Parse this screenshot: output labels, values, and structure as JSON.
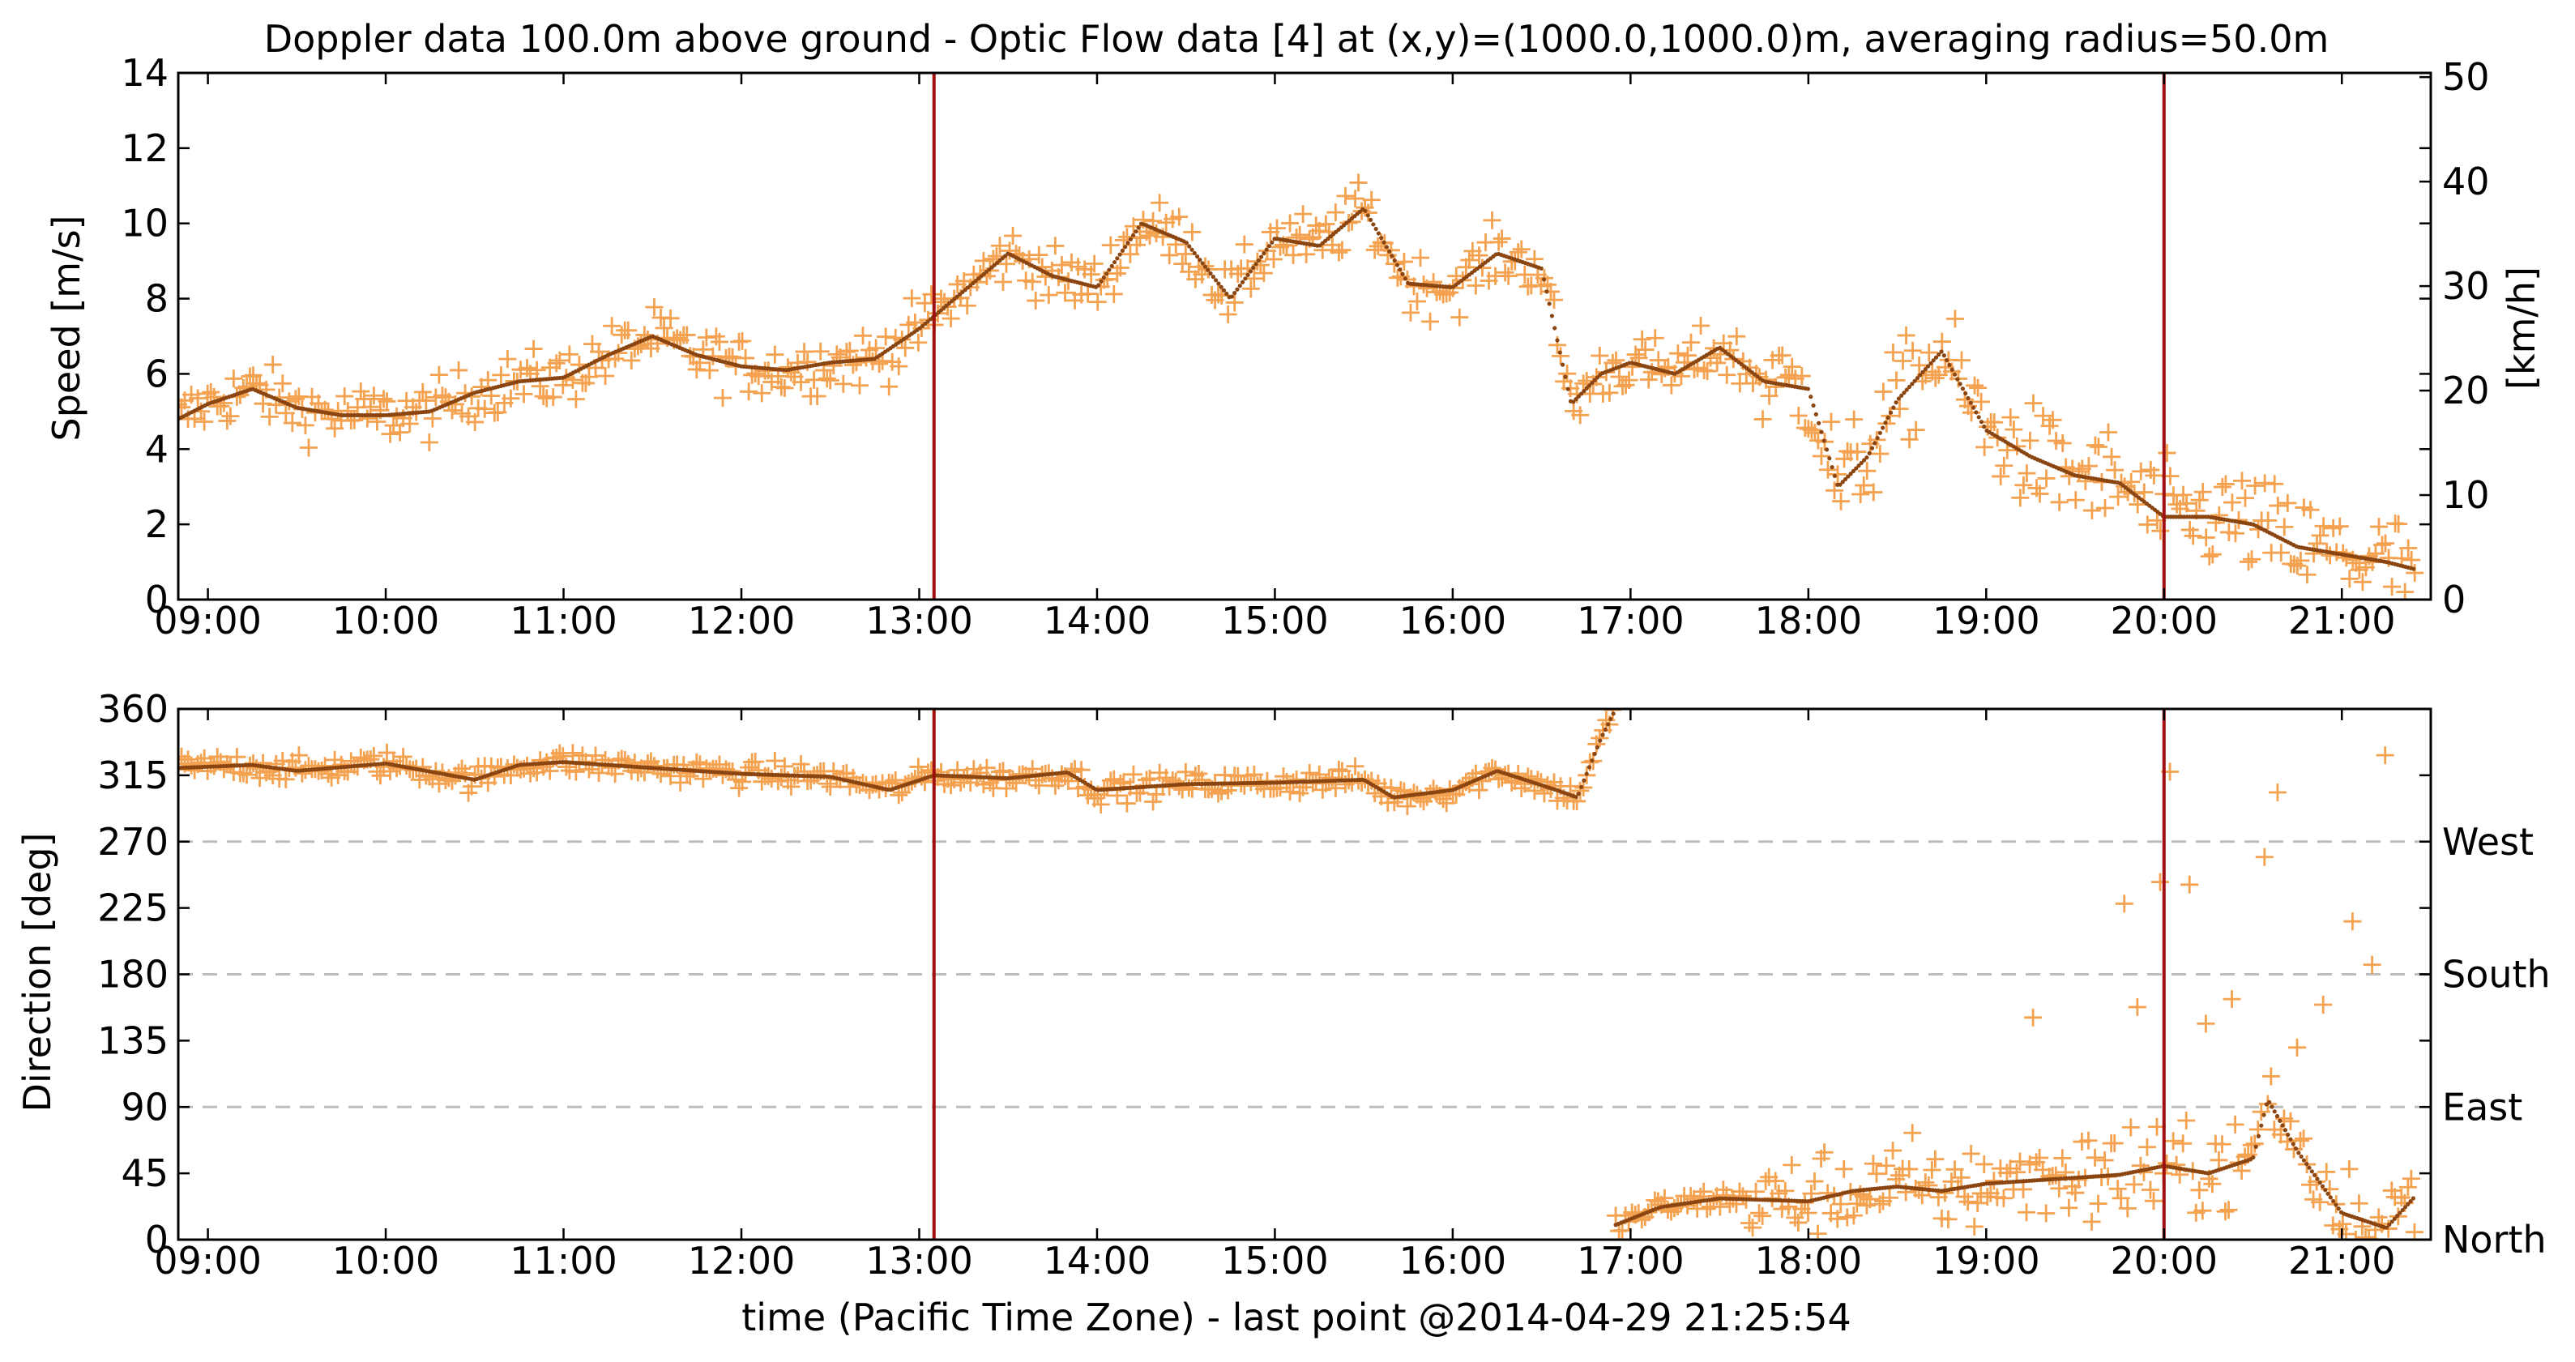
{
  "title": "Doppler data 100.0m above ground - Optic Flow data [4] at (x,y)=(1000.0,1000.0)m, averaging radius=50.0m",
  "xlabel": "time (Pacific Time Zone) - last point @2014-04-29 21:25:54",
  "x_ticks": [
    "09:00",
    "10:00",
    "11:00",
    "12:00",
    "13:00",
    "14:00",
    "15:00",
    "16:00",
    "17:00",
    "18:00",
    "19:00",
    "20:00",
    "21:00"
  ],
  "colors": {
    "scatter": "#f4a250",
    "line": "#8b4510",
    "vline": "#a01010",
    "grid": "#bdbdbd"
  },
  "chart_data": [
    {
      "type": "scatter",
      "name": "speed",
      "ylabel": "Speed [m/s]",
      "ylabel_right": "[km/h]",
      "ylim": [
        0,
        14
      ],
      "y_ticks": [
        "0",
        "2",
        "4",
        "6",
        "8",
        "10",
        "12",
        "14"
      ],
      "y2lim": [
        0,
        50.4
      ],
      "y2_ticks": [
        "0",
        "10",
        "20",
        "30",
        "40",
        "50"
      ],
      "xlim": [
        "08:50",
        "21:30"
      ],
      "vertical_lines": [
        "13:05",
        "20:00"
      ],
      "line_series": [
        {
          "x": "08:50",
          "y": 4.8
        },
        {
          "x": "09:00",
          "y": 5.2
        },
        {
          "x": "09:15",
          "y": 5.6
        },
        {
          "x": "09:30",
          "y": 5.1
        },
        {
          "x": "09:45",
          "y": 4.9
        },
        {
          "x": "10:00",
          "y": 4.9
        },
        {
          "x": "10:15",
          "y": 5.0
        },
        {
          "x": "10:30",
          "y": 5.5
        },
        {
          "x": "10:45",
          "y": 5.8
        },
        {
          "x": "11:00",
          "y": 5.9
        },
        {
          "x": "11:15",
          "y": 6.5
        },
        {
          "x": "11:30",
          "y": 7.0
        },
        {
          "x": "11:45",
          "y": 6.5
        },
        {
          "x": "12:00",
          "y": 6.2
        },
        {
          "x": "12:15",
          "y": 6.1
        },
        {
          "x": "12:30",
          "y": 6.3
        },
        {
          "x": "12:45",
          "y": 6.4
        },
        {
          "x": "13:00",
          "y": 7.2
        },
        {
          "x": "13:15",
          "y": 8.2
        },
        {
          "x": "13:30",
          "y": 9.2
        },
        {
          "x": "13:45",
          "y": 8.6
        },
        {
          "x": "14:00",
          "y": 8.3
        },
        {
          "x": "14:15",
          "y": 10.0
        },
        {
          "x": "14:30",
          "y": 9.5
        },
        {
          "x": "14:45",
          "y": 8.0
        },
        {
          "x": "15:00",
          "y": 9.6
        },
        {
          "x": "15:15",
          "y": 9.4
        },
        {
          "x": "15:30",
          "y": 10.4
        },
        {
          "x": "15:45",
          "y": 8.4
        },
        {
          "x": "16:00",
          "y": 8.3
        },
        {
          "x": "16:15",
          "y": 9.2
        },
        {
          "x": "16:30",
          "y": 8.8
        },
        {
          "x": "16:40",
          "y": 5.2
        },
        {
          "x": "16:50",
          "y": 6.0
        },
        {
          "x": "17:00",
          "y": 6.3
        },
        {
          "x": "17:15",
          "y": 6.0
        },
        {
          "x": "17:30",
          "y": 6.7
        },
        {
          "x": "17:45",
          "y": 5.8
        },
        {
          "x": "18:00",
          "y": 5.6
        },
        {
          "x": "18:10",
          "y": 3.0
        },
        {
          "x": "18:20",
          "y": 3.8
        },
        {
          "x": "18:30",
          "y": 5.3
        },
        {
          "x": "18:45",
          "y": 6.6
        },
        {
          "x": "19:00",
          "y": 4.5
        },
        {
          "x": "19:15",
          "y": 3.8
        },
        {
          "x": "19:30",
          "y": 3.3
        },
        {
          "x": "19:45",
          "y": 3.1
        },
        {
          "x": "20:00",
          "y": 2.2
        },
        {
          "x": "20:15",
          "y": 2.2
        },
        {
          "x": "20:30",
          "y": 2.0
        },
        {
          "x": "20:45",
          "y": 1.4
        },
        {
          "x": "21:00",
          "y": 1.2
        },
        {
          "x": "21:15",
          "y": 1.0
        },
        {
          "x": "21:25",
          "y": 0.8
        }
      ]
    },
    {
      "type": "scatter",
      "name": "direction",
      "ylabel": "Direction [deg]",
      "ylim": [
        0,
        360
      ],
      "y_ticks": [
        "0",
        "45",
        "90",
        "135",
        "180",
        "225",
        "270",
        "315",
        "360"
      ],
      "right_labels": [
        {
          "value": 0,
          "label": "North"
        },
        {
          "value": 90,
          "label": "East"
        },
        {
          "value": 180,
          "label": "South"
        },
        {
          "value": 270,
          "label": "West"
        }
      ],
      "dashed_gridlines": [
        90,
        180,
        270
      ],
      "xlim": [
        "08:50",
        "21:30"
      ],
      "vertical_lines": [
        "13:05",
        "20:00"
      ],
      "line_segments": [
        [
          {
            "x": "08:50",
            "y": 320
          },
          {
            "x": "09:15",
            "y": 322
          },
          {
            "x": "09:30",
            "y": 318
          },
          {
            "x": "10:00",
            "y": 323
          },
          {
            "x": "10:30",
            "y": 312
          },
          {
            "x": "10:45",
            "y": 322
          },
          {
            "x": "11:00",
            "y": 324
          },
          {
            "x": "11:30",
            "y": 320
          },
          {
            "x": "12:00",
            "y": 316
          },
          {
            "x": "12:30",
            "y": 314
          },
          {
            "x": "12:50",
            "y": 305
          },
          {
            "x": "13:05",
            "y": 315
          },
          {
            "x": "13:30",
            "y": 313
          },
          {
            "x": "13:50",
            "y": 317
          },
          {
            "x": "14:00",
            "y": 305
          },
          {
            "x": "14:30",
            "y": 309
          },
          {
            "x": "15:00",
            "y": 310
          },
          {
            "x": "15:30",
            "y": 312
          },
          {
            "x": "15:40",
            "y": 300
          },
          {
            "x": "16:00",
            "y": 305
          },
          {
            "x": "16:15",
            "y": 318
          },
          {
            "x": "16:35",
            "y": 305
          },
          {
            "x": "16:42",
            "y": 300
          },
          {
            "x": "16:50",
            "y": 340
          },
          {
            "x": "16:55",
            "y": 360
          }
        ],
        [
          {
            "x": "16:55",
            "y": 10
          },
          {
            "x": "17:10",
            "y": 22
          },
          {
            "x": "17:30",
            "y": 28
          },
          {
            "x": "17:45",
            "y": 27
          },
          {
            "x": "18:00",
            "y": 26
          },
          {
            "x": "18:15",
            "y": 33
          },
          {
            "x": "18:30",
            "y": 36
          },
          {
            "x": "18:45",
            "y": 33
          },
          {
            "x": "19:00",
            "y": 38
          },
          {
            "x": "19:15",
            "y": 40
          },
          {
            "x": "19:30",
            "y": 42
          },
          {
            "x": "19:45",
            "y": 44
          },
          {
            "x": "20:00",
            "y": 50
          },
          {
            "x": "20:15",
            "y": 45
          },
          {
            "x": "20:30",
            "y": 55
          },
          {
            "x": "20:35",
            "y": 95
          },
          {
            "x": "20:45",
            "y": 60
          },
          {
            "x": "21:00",
            "y": 18
          },
          {
            "x": "21:15",
            "y": 8
          },
          {
            "x": "21:25",
            "y": 30
          }
        ]
      ]
    }
  ]
}
